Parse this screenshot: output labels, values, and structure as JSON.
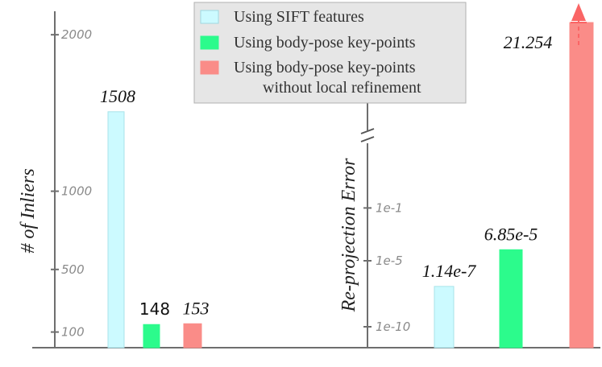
{
  "chart_data": [
    {
      "type": "bar",
      "ylabel": "# of Inliers",
      "y_ticks": [
        {
          "value": 100,
          "label": "100"
        },
        {
          "value": 500,
          "label": "500"
        },
        {
          "value": 1000,
          "label": "1000"
        },
        {
          "value": 2000,
          "label": "2000"
        }
      ],
      "ylim": [
        0,
        2150
      ],
      "series": [
        {
          "name": "Using SIFT features",
          "value": 1508,
          "label": "1508",
          "color": "#ccfaff"
        },
        {
          "name": "Using body-pose key-points",
          "value": 148,
          "label": "148",
          "color": "#2cfb8c"
        },
        {
          "name": "Using body-pose key-points without local refinement",
          "value": 153,
          "label": "153",
          "color": "#fa8c88"
        }
      ]
    },
    {
      "type": "bar",
      "scale": "log",
      "ylabel": "Re-projection Error",
      "axis_break": true,
      "y_ticks": [
        {
          "value": 1e-10,
          "label": "1e-10"
        },
        {
          "value": 1e-05,
          "label": "1e-5"
        },
        {
          "value": 0.1,
          "label": "1e-1"
        }
      ],
      "series": [
        {
          "name": "Using SIFT features",
          "value": 1.14e-07,
          "label": "1.14e-7",
          "color": "#ccfaff"
        },
        {
          "name": "Using body-pose key-points",
          "value": 6.85e-05,
          "label": "6.85e-5",
          "color": "#2cfb8c"
        },
        {
          "name": "Using body-pose key-points without local refinement",
          "value": 21.254,
          "label": "21.254",
          "color": "#fa8c88",
          "exceeds_axis": true
        }
      ]
    }
  ],
  "legend": {
    "placement": "top-center",
    "entries": [
      {
        "line1": "Using SIFT features",
        "line2": "",
        "color": "#ccfaff",
        "border": "#9fd8e0"
      },
      {
        "line1": "Using body-pose key-points",
        "line2": "",
        "color": "#2cfb8c",
        "border": "#2cfb8c"
      },
      {
        "line1": "Using body-pose key-points",
        "line2": "without local refinement",
        "color": "#fa8c88",
        "border": "#fa8c88"
      }
    ]
  }
}
